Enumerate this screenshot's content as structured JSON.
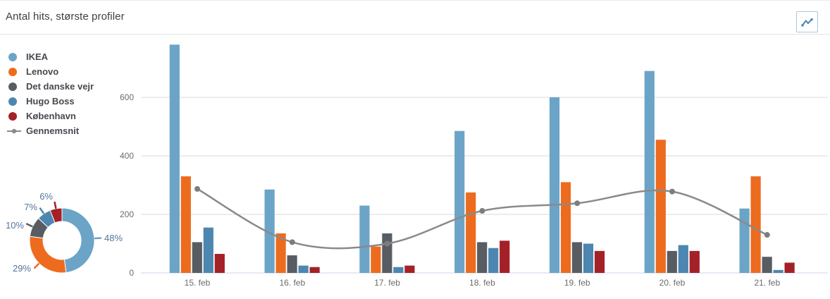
{
  "header": {
    "title": "Antal hits, største profiler"
  },
  "colors": {
    "accent_button_border": "#a9c8dd",
    "button_icon": "#4c87b4",
    "axis_text": "#6b6b6b",
    "gridline": "#d9d9d9",
    "baseline": "#c9d6e8",
    "donut_label": "#56759a",
    "legend_text": "#45494e"
  },
  "chart_data": [
    {
      "type": "bar",
      "title": "Antal hits, største profiler",
      "categories": [
        "15. feb",
        "16. feb",
        "17. feb",
        "18. feb",
        "19. feb",
        "20. feb",
        "21. feb"
      ],
      "series": [
        {
          "name": "IKEA",
          "color": "#6ba4c7",
          "values": [
            780,
            285,
            230,
            485,
            600,
            690,
            220
          ]
        },
        {
          "name": "Lenovo",
          "color": "#ed6b1f",
          "values": [
            330,
            135,
            90,
            275,
            310,
            455,
            330
          ]
        },
        {
          "name": "Det danske vejr",
          "color": "#585d63",
          "values": [
            105,
            60,
            135,
            105,
            105,
            75,
            55
          ]
        },
        {
          "name": "Hugo Boss",
          "color": "#4d86b0",
          "values": [
            155,
            25,
            20,
            85,
            100,
            95,
            10
          ]
        },
        {
          "name": "København",
          "color": "#a32127",
          "values": [
            65,
            20,
            25,
            110,
            75,
            75,
            35
          ]
        }
      ],
      "line_series": {
        "name": "Gennemsnit",
        "color": "#8a8a8a",
        "values": [
          287,
          105,
          100,
          212,
          238,
          278,
          130
        ]
      },
      "xlabel": "",
      "ylabel": "",
      "yticks": [
        0,
        200,
        400,
        600
      ],
      "ylim": [
        0,
        800
      ],
      "grid": true,
      "legend_position": "left"
    },
    {
      "type": "pie",
      "donut": true,
      "labels": [
        "IKEA",
        "Lenovo",
        "Det danske vejr",
        "Hugo Boss",
        "København"
      ],
      "values": [
        48,
        29,
        10,
        7,
        6
      ],
      "display_labels": [
        "48%",
        "29%",
        "10%",
        "7%",
        "6%"
      ],
      "colors": [
        "#6ba4c7",
        "#ed6b1f",
        "#585d63",
        "#4d86b0",
        "#a32127"
      ]
    }
  ]
}
